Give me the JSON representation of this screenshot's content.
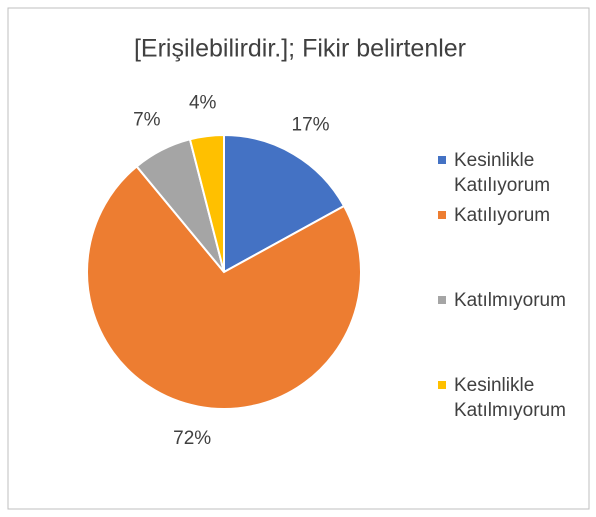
{
  "chart_data": {
    "type": "pie",
    "title": "[Erişilebilirdir.]; Fikir belirtenler",
    "categories": [
      "Kesinlikle Katılıyorum",
      "Katılıyorum",
      "Katılmıyorum",
      "Kesinlikle Katılmıyorum"
    ],
    "values": [
      17,
      72,
      7,
      4
    ],
    "value_labels": [
      "17%",
      "72%",
      "7%",
      "4%"
    ],
    "colors": [
      "#4472c4",
      "#ed7d31",
      "#a5a5a5",
      "#ffc000"
    ],
    "legend": "right"
  }
}
